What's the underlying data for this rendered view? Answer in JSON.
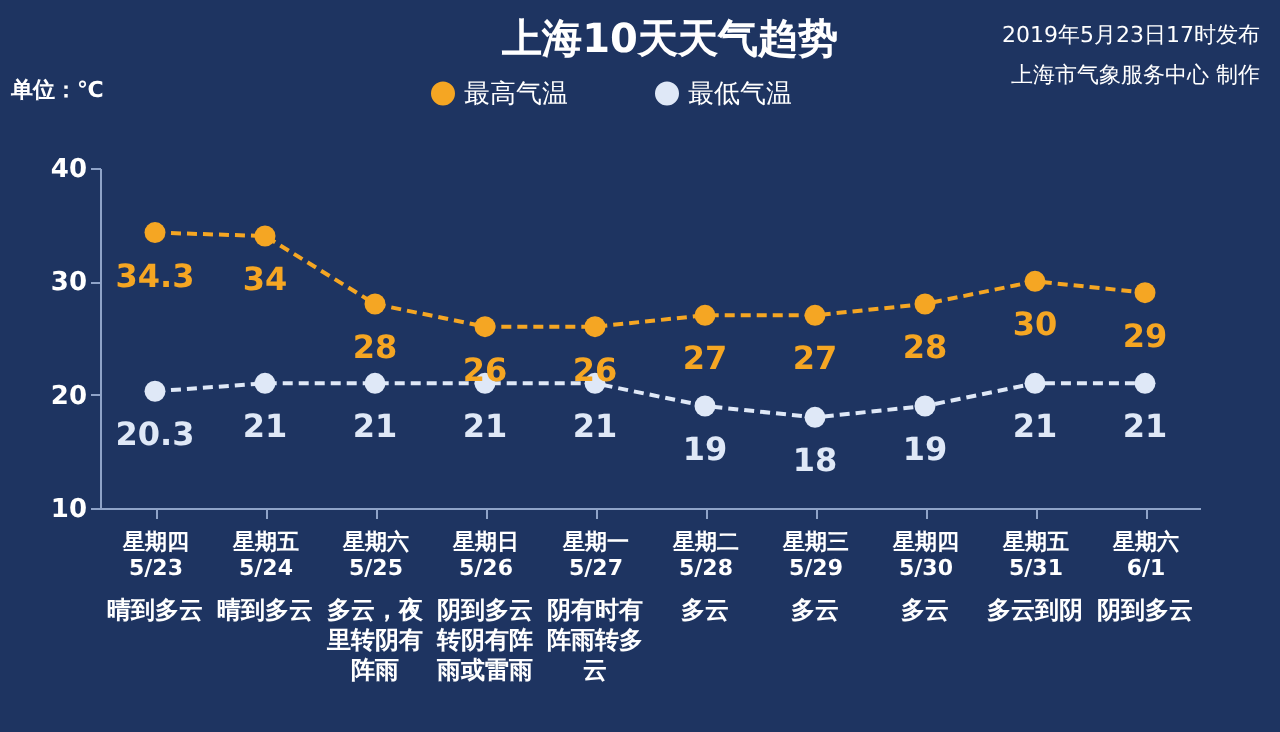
{
  "chart_data": {
    "type": "line",
    "title": "上海10天天气趋势",
    "ylabel": "单位：℃",
    "categories": [
      "星期四 5/23",
      "星期五 5/24",
      "星期六 5/25",
      "星期日 5/26",
      "星期一 5/27",
      "星期二 5/28",
      "星期三 5/29",
      "星期四 5/30",
      "星期五 5/31",
      "星期六 6/1"
    ],
    "series": [
      {
        "name": "最高气温",
        "color": "#f5a623",
        "values": [
          34.3,
          34,
          28,
          26,
          26,
          27,
          27,
          28,
          30,
          29
        ]
      },
      {
        "name": "最低气温",
        "color": "#dfe8f7",
        "values": [
          20.3,
          21,
          21,
          21,
          21,
          19,
          18,
          19,
          21,
          21
        ]
      }
    ],
    "ylim": [
      10,
      40
    ],
    "yticks": [
      10,
      20,
      30,
      40
    ],
    "data_labels": true,
    "legend": "top",
    "marker": "circle",
    "line_style": "dashed",
    "annotations": [
      "2019年5月23日17时发布",
      "上海市气象服务中心 制作",
      "晴到多云",
      "晴到多云",
      "多云，夜里转阴有阵雨",
      "阴到多云转阴有阵雨或雷雨",
      "阴有时有阵雨转多云",
      "多云",
      "多云",
      "多云",
      "多云到阴",
      "阴到多云"
    ]
  }
}
